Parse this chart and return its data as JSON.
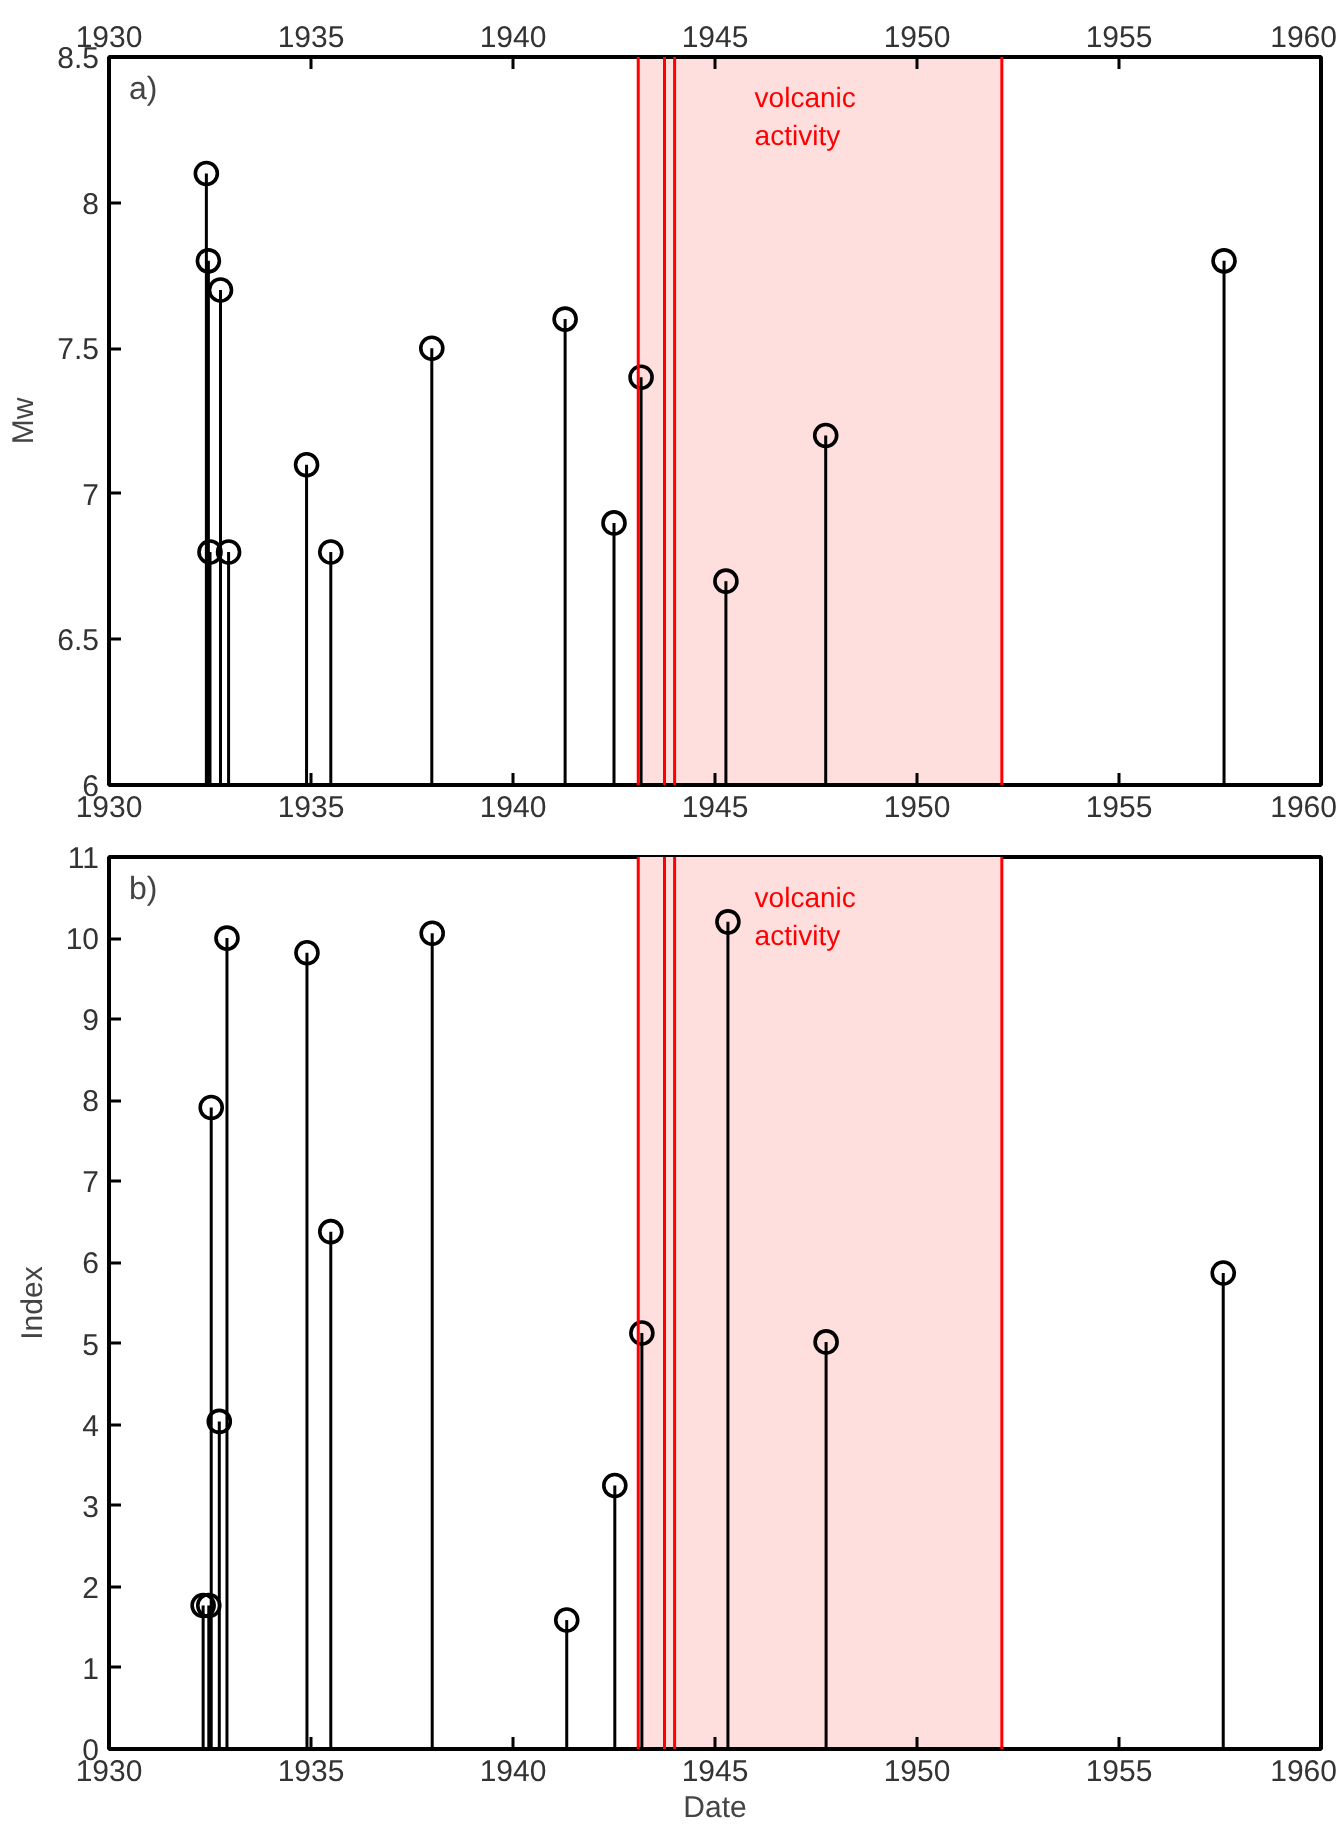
{
  "chart_data": [
    {
      "type": "lollipop",
      "ylabel": "Mw",
      "annotations": [
        "a)"
      ],
      "marker": "circle",
      "xlim": [
        1930,
        1960
      ],
      "xticks": [
        1930,
        1935,
        1940,
        1945,
        1950,
        1955,
        1960
      ],
      "x2lim": [
        1930,
        1960
      ],
      "x2ticks": [
        1930,
        1935,
        1940,
        1945,
        1950,
        1955,
        1960
      ],
      "ylim": [
        6,
        8.5
      ],
      "yticks": [
        6,
        6.5,
        7,
        7.5,
        8,
        8.5
      ],
      "series": [
        {
          "color": "#000000",
          "x": [
            1932.41,
            1932.46,
            1932.5,
            1932.76,
            1932.96,
            1934.89,
            1935.49,
            1937.99,
            1941.29,
            1942.5,
            1943.17,
            1945.27,
            1947.74,
            1957.6
          ],
          "values": [
            8.1,
            7.8,
            6.8,
            7.7,
            6.8,
            7.1,
            6.8,
            7.5,
            7.6,
            6.9,
            7.4,
            6.7,
            7.2,
            7.8
          ]
        }
      ],
      "bands": [
        {
          "axis": "x",
          "from": 1943.1,
          "to": 1952.1,
          "label": "volcanic activity",
          "color": "#ffdede"
        }
      ],
      "ref_lines": [
        {
          "axis": "x",
          "value": 1943.1,
          "color": "#ff0000"
        },
        {
          "axis": "x",
          "value": 1943.75,
          "color": "#ff0000"
        },
        {
          "axis": "x",
          "value": 1944.0,
          "color": "#ff0000"
        },
        {
          "axis": "x",
          "value": 1952.1,
          "color": "#ff0000"
        }
      ]
    },
    {
      "type": "lollipop",
      "xlabel": "Date",
      "ylabel": "Index",
      "annotations": [
        "b)"
      ],
      "marker": "circle",
      "xlim": [
        1930,
        1960
      ],
      "xticks": [
        1930,
        1935,
        1940,
        1945,
        1950,
        1955,
        1960
      ],
      "ylim": [
        0,
        11
      ],
      "yticks": [
        0,
        1,
        2,
        3,
        4,
        5,
        6,
        7,
        8,
        9,
        10,
        11
      ],
      "series": [
        {
          "color": "#000000",
          "x": [
            1932.33,
            1932.47,
            1932.53,
            1932.73,
            1932.92,
            1934.9,
            1935.49,
            1938.0,
            1941.33,
            1942.52,
            1943.19,
            1945.32,
            1947.75,
            1957.58
          ],
          "values": [
            1.77,
            1.77,
            7.91,
            4.04,
            10.0,
            9.82,
            6.38,
            10.06,
            1.59,
            3.25,
            5.13,
            10.2,
            5.02,
            5.87
          ]
        }
      ],
      "bands": [
        {
          "axis": "x",
          "from": 1943.1,
          "to": 1952.1,
          "label": "volcanic activity",
          "color": "#ffdede"
        }
      ],
      "ref_lines": [
        {
          "axis": "x",
          "value": 1943.1,
          "color": "#ff0000"
        },
        {
          "axis": "x",
          "value": 1943.75,
          "color": "#ff0000"
        },
        {
          "axis": "x",
          "value": 1944.0,
          "color": "#ff0000"
        },
        {
          "axis": "x",
          "value": 1952.1,
          "color": "#ff0000"
        }
      ]
    }
  ]
}
